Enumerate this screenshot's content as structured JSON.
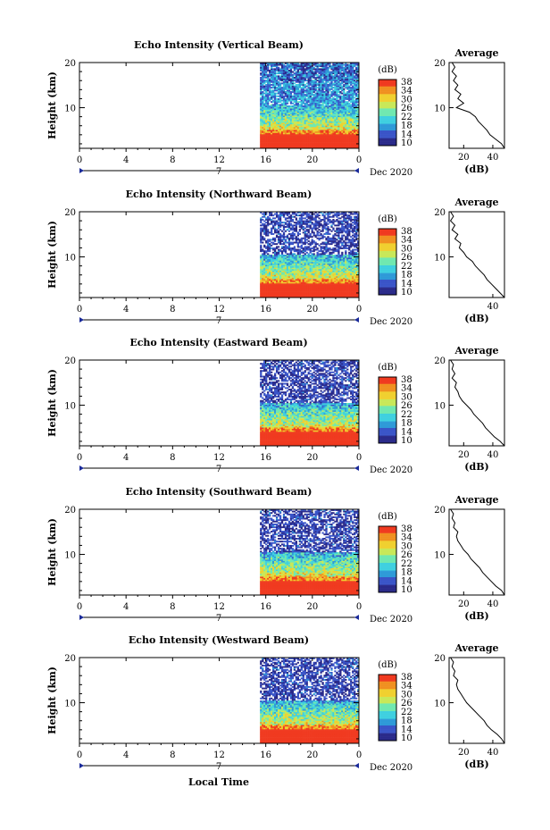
{
  "figure": {
    "xlabel_bottom": "Local Time",
    "date_label": "Dec 2020",
    "day_label": "7",
    "main_ylabel": "Height (km)",
    "avg_title": "Average",
    "avg_xlabel": "(dB)",
    "colorbar_label": "(dB)",
    "colorbar_ticks": [
      "10",
      "14",
      "18",
      "22",
      "26",
      "30",
      "34",
      "38"
    ],
    "colormap": [
      "#2a2a8a",
      "#3a55c8",
      "#2f9ad8",
      "#3fd0e0",
      "#70e8b0",
      "#c8e858",
      "#f0d030",
      "#f09020",
      "#f03a20"
    ]
  },
  "chart_data": [
    {
      "type": "heatmap",
      "title": "Echo Intensity (Vertical Beam)",
      "x_ticks": [
        "0",
        "4",
        "8",
        "12",
        "16",
        "20",
        "0"
      ],
      "y_ticks": [
        "10",
        "20"
      ],
      "xlim": [
        0,
        24
      ],
      "ylim": [
        1,
        20
      ],
      "data_start_hour": 15.5,
      "avg_ticks": [
        "20",
        "40"
      ],
      "avg_xlim": [
        10,
        48
      ],
      "average_profile": [
        [
          48,
          1
        ],
        [
          46,
          2
        ],
        [
          42,
          3
        ],
        [
          38,
          4
        ],
        [
          36,
          5
        ],
        [
          33,
          6
        ],
        [
          30,
          7
        ],
        [
          28,
          8
        ],
        [
          24,
          9
        ],
        [
          15,
          10
        ],
        [
          20,
          11
        ],
        [
          16,
          12
        ],
        [
          18,
          13
        ],
        [
          14,
          14
        ],
        [
          16,
          15
        ],
        [
          13,
          16
        ],
        [
          15,
          17
        ],
        [
          12,
          18
        ],
        [
          14,
          19
        ],
        [
          12,
          20
        ]
      ]
    },
    {
      "type": "heatmap",
      "title": "Echo Intensity (Northward Beam)",
      "x_ticks": [
        "0",
        "4",
        "8",
        "12",
        "16",
        "20",
        "0"
      ],
      "y_ticks": [
        "10",
        "20"
      ],
      "xlim": [
        0,
        24
      ],
      "ylim": [
        1,
        20
      ],
      "data_start_hour": 15.5,
      "avg_ticks": [
        "40"
      ],
      "avg_xlim": [
        10,
        48
      ],
      "average_profile": [
        [
          48,
          1
        ],
        [
          45,
          2
        ],
        [
          42,
          3
        ],
        [
          39,
          4
        ],
        [
          36,
          5
        ],
        [
          34,
          6
        ],
        [
          31,
          7
        ],
        [
          28,
          8
        ],
        [
          26,
          9
        ],
        [
          22,
          10
        ],
        [
          20,
          11
        ],
        [
          17,
          12
        ],
        [
          18,
          13
        ],
        [
          14,
          14
        ],
        [
          16,
          15
        ],
        [
          12,
          16
        ],
        [
          14,
          17
        ],
        [
          11,
          18
        ],
        [
          13,
          19
        ],
        [
          11,
          20
        ]
      ]
    },
    {
      "type": "heatmap",
      "title": "Echo Intensity (Eastward Beam)",
      "x_ticks": [
        "0",
        "4",
        "8",
        "12",
        "16",
        "20",
        "0"
      ],
      "y_ticks": [
        "10",
        "20"
      ],
      "xlim": [
        0,
        24
      ],
      "ylim": [
        1,
        20
      ],
      "data_start_hour": 15.5,
      "avg_ticks": [
        "20",
        "40"
      ],
      "avg_xlim": [
        10,
        48
      ],
      "average_profile": [
        [
          48,
          1
        ],
        [
          45,
          2
        ],
        [
          41,
          3
        ],
        [
          38,
          4
        ],
        [
          35,
          5
        ],
        [
          33,
          6
        ],
        [
          30,
          7
        ],
        [
          27,
          8
        ],
        [
          25,
          9
        ],
        [
          22,
          10
        ],
        [
          19,
          11
        ],
        [
          17,
          12
        ],
        [
          16,
          13
        ],
        [
          14,
          14
        ],
        [
          15,
          15
        ],
        [
          12,
          16
        ],
        [
          14,
          17
        ],
        [
          12,
          18
        ],
        [
          13,
          19
        ],
        [
          11,
          20
        ]
      ]
    },
    {
      "type": "heatmap",
      "title": "Echo Intensity (Southward Beam)",
      "x_ticks": [
        "0",
        "4",
        "8",
        "12",
        "16",
        "20",
        "0"
      ],
      "y_ticks": [
        "10",
        "20"
      ],
      "xlim": [
        0,
        24
      ],
      "ylim": [
        1,
        20
      ],
      "data_start_hour": 15.5,
      "avg_ticks": [
        "20",
        "40"
      ],
      "avg_xlim": [
        10,
        48
      ],
      "average_profile": [
        [
          48,
          1
        ],
        [
          46,
          2
        ],
        [
          42,
          3
        ],
        [
          39,
          4
        ],
        [
          36,
          5
        ],
        [
          33,
          6
        ],
        [
          31,
          7
        ],
        [
          28,
          8
        ],
        [
          25,
          9
        ],
        [
          23,
          10
        ],
        [
          20,
          11
        ],
        [
          18,
          12
        ],
        [
          16,
          13
        ],
        [
          15,
          14
        ],
        [
          16,
          15
        ],
        [
          13,
          16
        ],
        [
          14,
          17
        ],
        [
          12,
          18
        ],
        [
          13,
          19
        ],
        [
          11,
          20
        ]
      ]
    },
    {
      "type": "heatmap",
      "title": "Echo Intensity (Westward Beam)",
      "x_ticks": [
        "0",
        "4",
        "8",
        "12",
        "16",
        "20",
        "0"
      ],
      "y_ticks": [
        "10",
        "20"
      ],
      "xlim": [
        0,
        24
      ],
      "ylim": [
        1,
        20
      ],
      "data_start_hour": 15.5,
      "avg_ticks": [
        "20",
        "40"
      ],
      "avg_xlim": [
        10,
        48
      ],
      "average_profile": [
        [
          48,
          1
        ],
        [
          46,
          2
        ],
        [
          43,
          3
        ],
        [
          39,
          4
        ],
        [
          36,
          5
        ],
        [
          34,
          6
        ],
        [
          31,
          7
        ],
        [
          28,
          8
        ],
        [
          25,
          9
        ],
        [
          22,
          10
        ],
        [
          20,
          11
        ],
        [
          18,
          12
        ],
        [
          16,
          13
        ],
        [
          15,
          14
        ],
        [
          16,
          15
        ],
        [
          13,
          16
        ],
        [
          14,
          17
        ],
        [
          12,
          18
        ],
        [
          13,
          19
        ],
        [
          11,
          20
        ]
      ]
    }
  ]
}
